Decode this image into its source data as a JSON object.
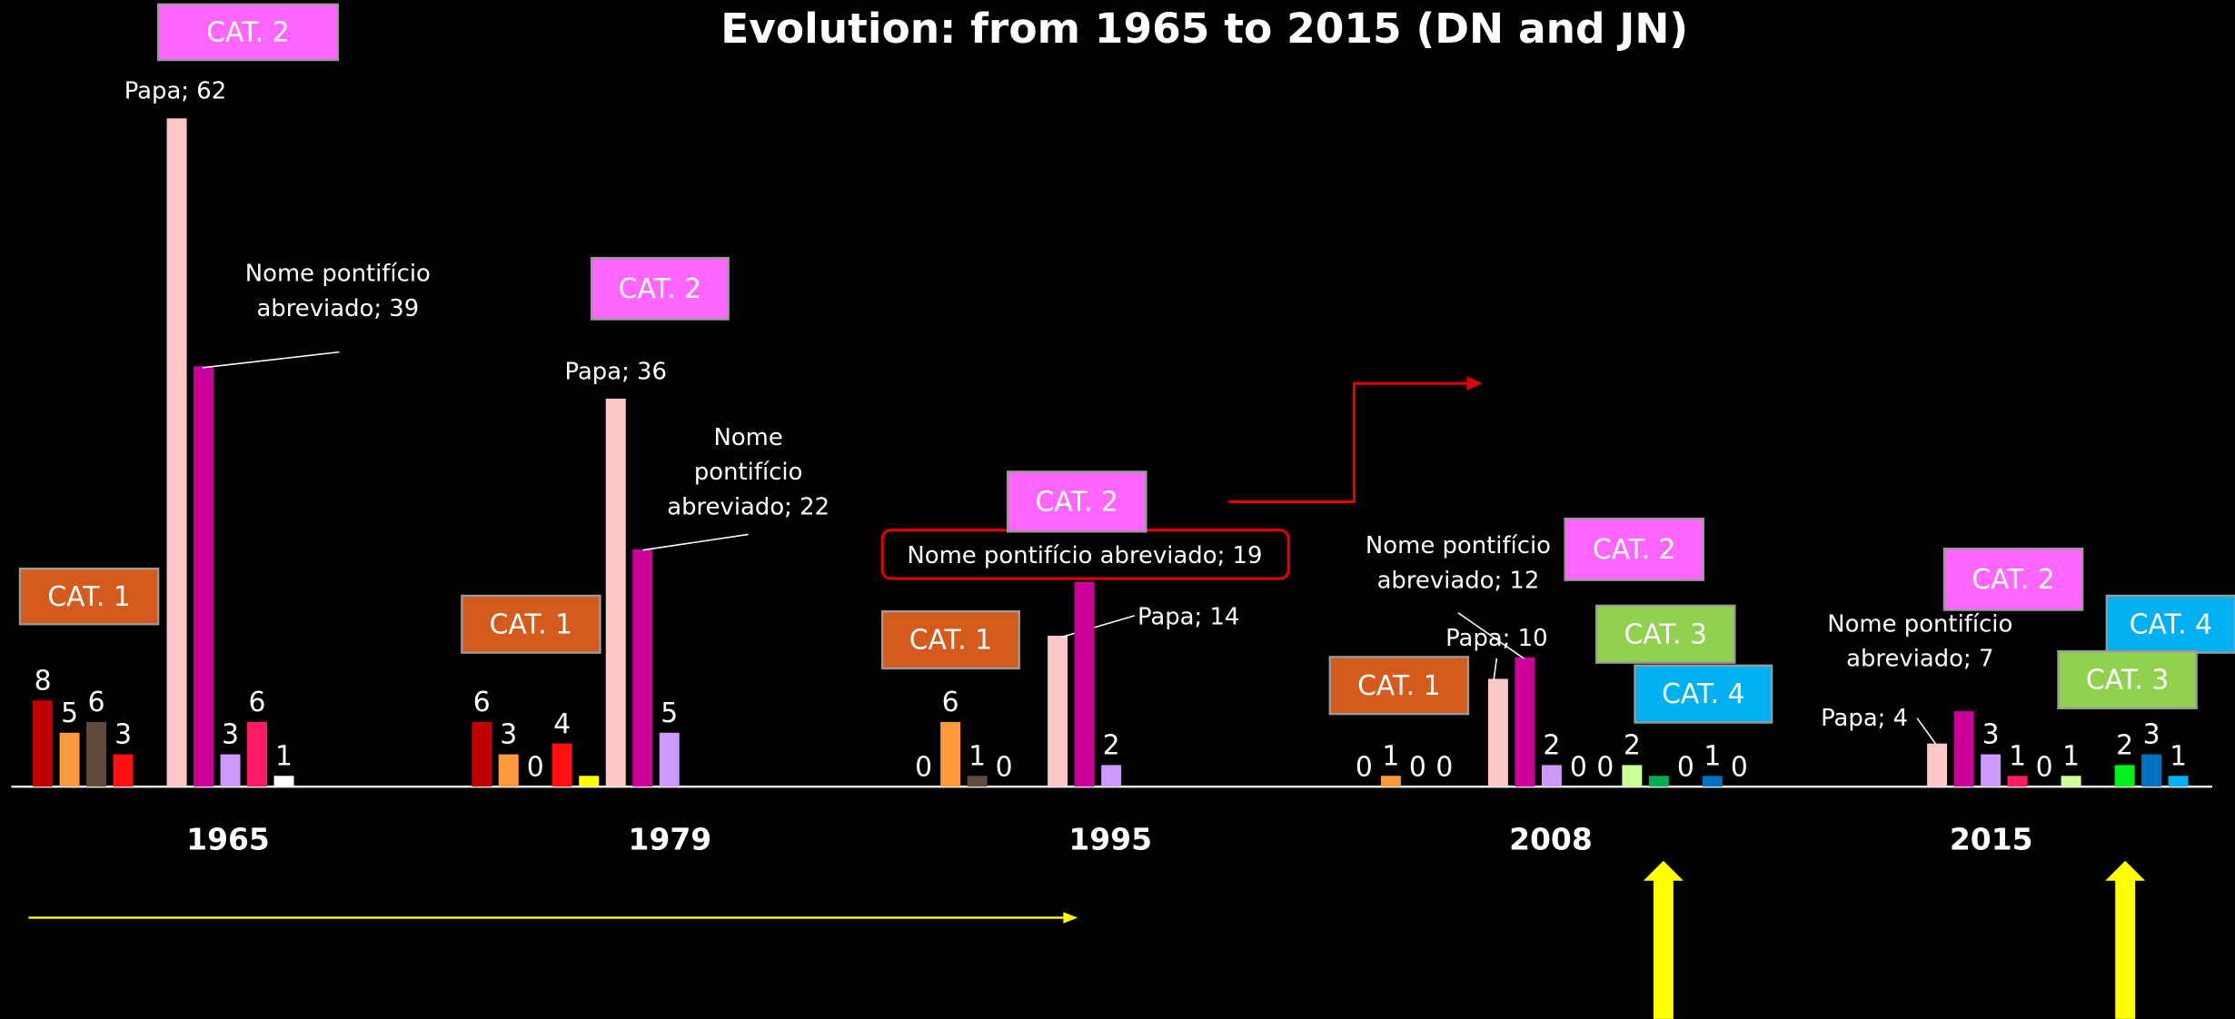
{
  "chart_data": {
    "type": "bar",
    "title": "Evolution: from 1965 to 2015 (DN and JN)",
    "categories": [
      "1965",
      "1979",
      "1995",
      "2008",
      "2015"
    ],
    "ylim": [
      0,
      62
    ],
    "series": [
      {
        "color": "#c00000",
        "values": [
          8,
          6,
          0,
          0,
          null
        ]
      },
      {
        "color": "#ff9a3c",
        "values": [
          5,
          3,
          6,
          1,
          null
        ]
      },
      {
        "color": "#5e4b3c",
        "values": [
          6,
          0,
          1,
          0,
          null
        ]
      },
      {
        "color": "#ff1010",
        "values": [
          3,
          4,
          0,
          0,
          null
        ]
      },
      {
        "color": "#ffff00",
        "values": [
          null,
          1,
          null,
          null,
          null
        ],
        "show_labels": false
      },
      {
        "color": "#ffc8c8",
        "values": [
          62,
          36,
          14,
          10,
          4
        ],
        "value_labels": [
          "Papa; 62",
          "Papa; 36",
          "Papa; 14",
          "Papa; 10",
          "Papa; 4"
        ]
      },
      {
        "color": "#cc0099",
        "values": [
          39,
          22,
          19,
          12,
          7
        ],
        "value_labels": [
          "Nome pontifício abreviado; 39",
          "Nome pontifício abreviado; 22",
          "Nome pontifício abreviado; 19",
          "Nome pontifício abreviado; 12",
          "Nome pontifício abreviado; 7"
        ]
      },
      {
        "color": "#cc99ff",
        "values": [
          3,
          5,
          2,
          2,
          3
        ]
      },
      {
        "color": "#ff1a66",
        "values": [
          6,
          null,
          null,
          0,
          1
        ]
      },
      {
        "color": "#ffffff",
        "values": [
          1,
          null,
          null,
          0,
          0
        ]
      },
      {
        "color": "#ccff99",
        "values": [
          null,
          null,
          null,
          2,
          1
        ]
      },
      {
        "color": "#00b050",
        "values": [
          null,
          null,
          null,
          1,
          null
        ],
        "show_labels": false
      },
      {
        "color": "#00f020",
        "values": [
          null,
          null,
          null,
          0,
          2
        ]
      },
      {
        "color": "#0070c0",
        "values": [
          null,
          null,
          null,
          1,
          3
        ]
      },
      {
        "color": "#00b0f0",
        "values": [
          null,
          null,
          null,
          0,
          1
        ]
      }
    ],
    "boxes": [
      {
        "text": "CAT. 2",
        "color": "#ff66ff"
      },
      {
        "text": "CAT. 1",
        "color": "#d45a1e"
      },
      {
        "text": "CAT. 2",
        "color": "#ff66ff"
      },
      {
        "text": "CAT. 1",
        "color": "#d45a1e"
      },
      {
        "text": "CAT. 2",
        "color": "#ff66ff"
      },
      {
        "text": "CAT. 1",
        "color": "#d45a1e"
      },
      {
        "text": "CAT. 2",
        "color": "#ff66ff"
      },
      {
        "text": "CAT. 1",
        "color": "#d45a1e"
      },
      {
        "text": "CAT. 3",
        "color": "#92d050"
      },
      {
        "text": "CAT. 4",
        "color": "#00b0f0"
      },
      {
        "text": "CAT. 2",
        "color": "#ff66ff"
      },
      {
        "text": "CAT. 4",
        "color": "#00b0f0"
      },
      {
        "text": "CAT. 3",
        "color": "#92d050"
      }
    ]
  }
}
